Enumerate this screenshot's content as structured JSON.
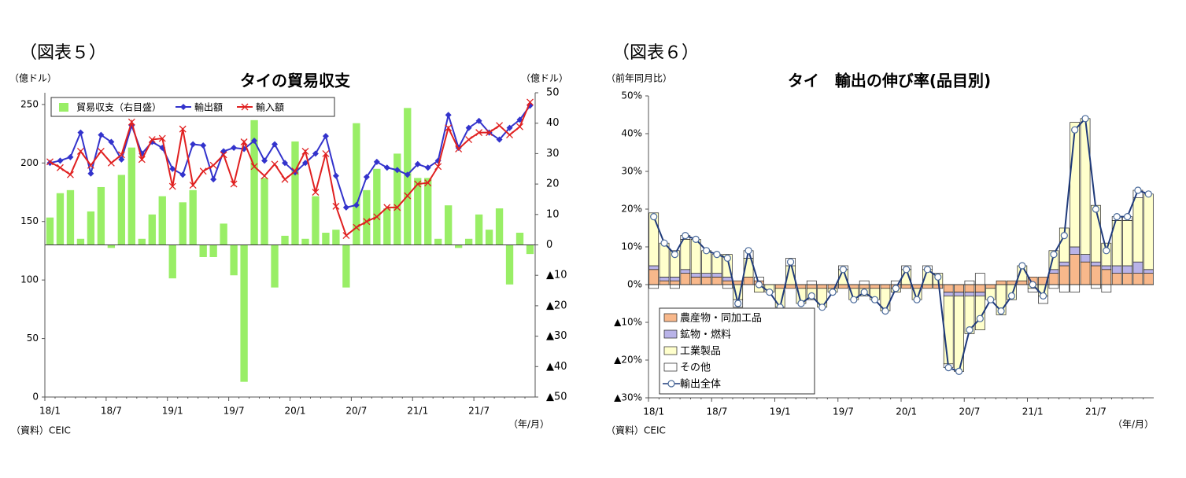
{
  "chart_data": [
    {
      "type": "combo",
      "figure_label": "（図表５）",
      "title": "タイの貿易収支",
      "y_label": "（億ドル）",
      "y2_label": "（億ドル）",
      "x_unit": "（年/月）",
      "source": "（資料）CEIC",
      "legend": "top-left",
      "categories": [
        "18/1",
        null,
        null,
        null,
        null,
        null,
        "18/7",
        null,
        null,
        null,
        null,
        null,
        "19/1",
        null,
        null,
        null,
        null,
        null,
        "19/7",
        null,
        null,
        null,
        null,
        null,
        "20/1",
        null,
        null,
        null,
        null,
        null,
        "20/7",
        null,
        null,
        null,
        null,
        null,
        "21/1",
        null,
        null,
        null,
        null,
        null,
        "21/7",
        null,
        null,
        null,
        null,
        null
      ],
      "ylim": [
        0,
        260
      ],
      "yticks": [
        0,
        50,
        100,
        150,
        200,
        250
      ],
      "y2lim": [
        -50,
        50
      ],
      "y2ticks": [
        {
          "value": -50,
          "label": "▲50"
        },
        {
          "value": -40,
          "label": "▲40"
        },
        {
          "value": -30,
          "label": "▲30"
        },
        {
          "value": -20,
          "label": "▲20"
        },
        {
          "value": -10,
          "label": "▲10"
        },
        0,
        10,
        20,
        30,
        40,
        50
      ],
      "series": [
        {
          "name": "貿易収支（右目盛）",
          "type": "bar",
          "axis": "y2",
          "color": "#99ee66",
          "values": [
            9,
            17,
            18,
            2,
            11,
            19,
            -1,
            23,
            32,
            2,
            10,
            16,
            -11,
            14,
            18,
            -4,
            -4,
            7,
            -10,
            -45,
            41,
            22,
            -14,
            3,
            34,
            2,
            16,
            4,
            5,
            -14,
            40,
            18,
            25,
            12,
            30,
            45,
            22,
            22,
            2,
            13,
            -1,
            2,
            10,
            5,
            12,
            -13,
            4,
            -3
          ]
        },
        {
          "name": "輸出額",
          "type": "line",
          "marker": "diamond",
          "color": "#3333cc",
          "values": [
            200,
            202,
            205,
            226,
            191,
            224,
            218,
            203,
            232,
            208,
            218,
            213,
            195,
            190,
            216,
            215,
            186,
            210,
            213,
            212,
            219,
            202,
            216,
            200,
            192,
            200,
            208,
            223,
            189,
            162,
            164,
            188,
            201,
            196,
            194,
            190,
            199,
            196,
            202,
            241,
            213,
            230,
            236,
            226,
            220,
            230,
            237,
            249
          ]
        },
        {
          "name": "輸入額",
          "type": "line",
          "marker": "x",
          "color": "#e02020",
          "values": [
            201,
            196,
            190,
            210,
            198,
            210,
            200,
            207,
            235,
            203,
            220,
            221,
            180,
            229,
            181,
            193,
            198,
            207,
            182,
            218,
            197,
            189,
            199,
            186,
            193,
            210,
            175,
            208,
            163,
            138,
            145,
            150,
            154,
            162,
            162,
            172,
            182,
            183,
            197,
            230,
            212,
            220,
            226,
            226,
            232,
            224,
            231,
            252
          ]
        }
      ]
    },
    {
      "type": "combo",
      "stacked": true,
      "figure_label": "（図表６）",
      "title": "タイ　輸出の伸び率(品目別)",
      "y_label": "（前年同月比）",
      "x_unit": "（年/月）",
      "source": "（資料）CEIC",
      "legend": "bottom-left",
      "categories": [
        "18/1",
        null,
        null,
        null,
        null,
        null,
        "18/7",
        null,
        null,
        null,
        null,
        null,
        "19/1",
        null,
        null,
        null,
        null,
        null,
        "19/7",
        null,
        null,
        null,
        null,
        null,
        "20/1",
        null,
        null,
        null,
        null,
        null,
        "20/7",
        null,
        null,
        null,
        null,
        null,
        "21/1",
        null,
        null,
        null,
        null,
        null,
        "21/7",
        null,
        null,
        null,
        null,
        null
      ],
      "ylim": [
        -30,
        50
      ],
      "yticks": [
        {
          "value": -30,
          "label": "▲30%"
        },
        {
          "value": -20,
          "label": "▲20%"
        },
        {
          "value": -10,
          "label": "▲10%"
        },
        {
          "value": 0,
          "label": "0%"
        },
        {
          "value": 10,
          "label": "10%"
        },
        {
          "value": 20,
          "label": "20%"
        },
        {
          "value": 30,
          "label": "30%"
        },
        {
          "value": 40,
          "label": "40%"
        },
        {
          "value": 50,
          "label": "50%"
        }
      ],
      "series": [
        {
          "name": "農産物・同加工品",
          "type": "bar",
          "color": "#f8b88b",
          "values": [
            4,
            1,
            1,
            3,
            2,
            2,
            2,
            1,
            1,
            2,
            1,
            0,
            -1,
            -1,
            -1,
            -1,
            -1,
            -1,
            -1,
            -1,
            -1,
            -1,
            -1,
            -1,
            -1,
            -1,
            -1,
            -1,
            -2,
            -2,
            -2,
            -2,
            -1,
            1,
            1,
            1,
            2,
            2,
            3,
            5,
            8,
            6,
            5,
            4,
            3,
            3,
            3,
            3
          ]
        },
        {
          "name": "鉱物・燃料",
          "type": "bar",
          "color": "#b9b3e8",
          "values": [
            1,
            1,
            1,
            1,
            1,
            1,
            1,
            1,
            0,
            0,
            0,
            0,
            0,
            0,
            0,
            0,
            0,
            0,
            0,
            0,
            0,
            0,
            0,
            0,
            0,
            0,
            0,
            0,
            -1,
            -1,
            -1,
            -1,
            0,
            0,
            0,
            0,
            0,
            0,
            1,
            1,
            2,
            2,
            1,
            1,
            2,
            2,
            3,
            1
          ]
        },
        {
          "name": "工業製品",
          "type": "bar",
          "color": "#ffffcc",
          "values": [
            14,
            9,
            7,
            8,
            9,
            6,
            5,
            6,
            -4,
            5,
            -2,
            -2,
            -5,
            5,
            -4,
            -3,
            -5,
            -1,
            4,
            -3,
            -2,
            -3,
            -6,
            -1,
            4,
            -3,
            4,
            3,
            -18,
            -20,
            -10,
            -9,
            -3,
            -8,
            -4,
            4,
            -1,
            -3,
            5,
            9,
            33,
            36,
            15,
            6,
            12,
            12,
            17,
            20
          ]
        },
        {
          "name": "その他",
          "type": "bar",
          "color": "#ffffff",
          "values": [
            -1,
            0,
            -1,
            1,
            0,
            0,
            0,
            -1,
            -2,
            2,
            1,
            0,
            0,
            2,
            0,
            1,
            0,
            0,
            1,
            0,
            1,
            0,
            0,
            1,
            1,
            0,
            1,
            0,
            -1,
            0,
            1,
            3,
            0,
            0,
            0,
            0,
            -1,
            -2,
            -1,
            -2,
            -2,
            0,
            -1,
            -2,
            1,
            1,
            2,
            0
          ]
        },
        {
          "name": "輸出全体",
          "type": "line",
          "marker": "circle",
          "color": "#1f3a7a",
          "values": [
            18,
            11,
            8,
            13,
            12,
            9,
            8,
            7,
            -5,
            9,
            0,
            -2,
            -6,
            6,
            -5,
            -3,
            -6,
            -2,
            4,
            -4,
            -2,
            -4,
            -7,
            -1,
            4,
            -4,
            4,
            2,
            -22,
            -23,
            -12,
            -9,
            -4,
            -7,
            -3,
            5,
            0,
            -3,
            8,
            13,
            41,
            44,
            20,
            9,
            18,
            18,
            25,
            24
          ]
        }
      ]
    }
  ]
}
